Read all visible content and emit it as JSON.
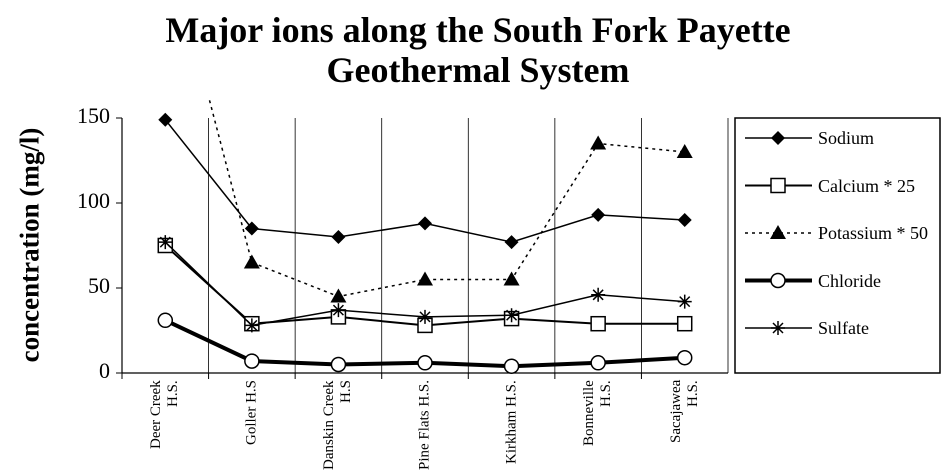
{
  "chart_data": {
    "type": "line",
    "title": "Major ions along the South Fork Payette Geothermal System",
    "y_label": "concentration (mg/l)",
    "categories": [
      "Deer Creek H.S.",
      "Goller H.S",
      "Danskin Creek H.S",
      "Pine Flats H.S.",
      "Kirkham H.S.",
      "Bonneville H.S.",
      "Sacajawea H.S."
    ],
    "series": [
      {
        "name": "Sodium",
        "color": "#000000",
        "values": [
          149,
          85,
          80,
          88,
          77,
          93,
          90
        ]
      },
      {
        "name": "Calcium * 25",
        "color": "#000000",
        "values": [
          75,
          29,
          33,
          28,
          32,
          29,
          29
        ]
      },
      {
        "name": "Potassium * 50",
        "color": "#000000",
        "values": [
          260,
          65,
          45,
          55,
          55,
          135,
          130
        ]
      },
      {
        "name": "Chloride",
        "color": "#000000",
        "values": [
          31,
          7,
          5,
          6,
          4,
          6,
          9
        ]
      },
      {
        "name": "Sulfate",
        "color": "#000000",
        "values": [
          77,
          28,
          37,
          33,
          34,
          46,
          42
        ]
      }
    ],
    "ylim": [
      0,
      150
    ],
    "yticks": [
      0,
      50,
      100,
      150
    ],
    "grid": "x",
    "legend": "right"
  }
}
